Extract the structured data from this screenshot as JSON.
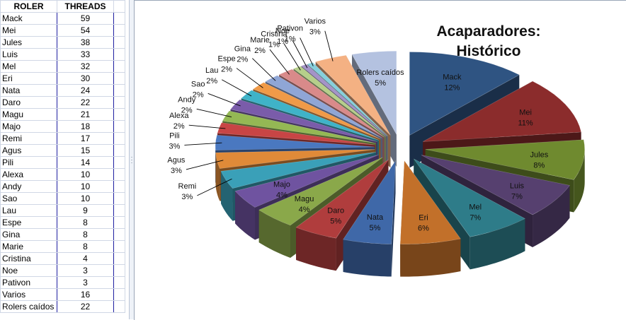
{
  "sheet": {
    "headers": [
      "ROLER",
      "THREADS"
    ],
    "rows": [
      [
        "Mack",
        "59"
      ],
      [
        "Mei",
        "54"
      ],
      [
        "Jules",
        "38"
      ],
      [
        "Luis",
        "33"
      ],
      [
        "Mel",
        "32"
      ],
      [
        "Eri",
        "30"
      ],
      [
        "Nata",
        "24"
      ],
      [
        "Daro",
        "22"
      ],
      [
        "Magu",
        "21"
      ],
      [
        "Majo",
        "18"
      ],
      [
        "Remi",
        "17"
      ],
      [
        "Agus",
        "15"
      ],
      [
        "Pili",
        "14"
      ],
      [
        "Alexa",
        "10"
      ],
      [
        "Andy",
        "10"
      ],
      [
        "Sao",
        "10"
      ],
      [
        "Lau",
        "9"
      ],
      [
        "Espe",
        "8"
      ],
      [
        "Gina",
        "8"
      ],
      [
        "Marie",
        "8"
      ],
      [
        "Cristina",
        "4"
      ],
      [
        "Noe",
        "3"
      ],
      [
        "Pativon",
        "3"
      ],
      [
        "Varios",
        "16"
      ],
      [
        "Rolers caídos",
        "22"
      ]
    ]
  },
  "chart_data": {
    "type": "pie",
    "title_lines": [
      "Acaparadores:",
      "Histórico"
    ],
    "slices": [
      {
        "label": "Mack",
        "value": 59,
        "pct_label": "12%",
        "color": "#2f5482"
      },
      {
        "label": "Mei",
        "value": 54,
        "pct_label": "11%",
        "color": "#8b2c2c"
      },
      {
        "label": "Jules",
        "value": 38,
        "pct_label": "8%",
        "color": "#6f8a2f"
      },
      {
        "label": "Luis",
        "value": 33,
        "pct_label": "7%",
        "color": "#56406f"
      },
      {
        "label": "Mel",
        "value": 32,
        "pct_label": "7%",
        "color": "#2e7c89"
      },
      {
        "label": "Eri",
        "value": 30,
        "pct_label": "6%",
        "color": "#c2702a"
      },
      {
        "label": "Nata",
        "value": 24,
        "pct_label": "5%",
        "color": "#3f68a8"
      },
      {
        "label": "Daro",
        "value": 22,
        "pct_label": "5%",
        "color": "#b03d3d"
      },
      {
        "label": "Magu",
        "value": 21,
        "pct_label": "4%",
        "color": "#8aa84a"
      },
      {
        "label": "Majo",
        "value": 18,
        "pct_label": "4%",
        "color": "#6f53a0"
      },
      {
        "label": "Remi",
        "value": 17,
        "pct_label": "3%",
        "color": "#3aa0b8"
      },
      {
        "label": "Agus",
        "value": 15,
        "pct_label": "3%",
        "color": "#e08a38"
      },
      {
        "label": "Pili",
        "value": 14,
        "pct_label": "3%",
        "color": "#4a78c0"
      },
      {
        "label": "Alexa",
        "value": 10,
        "pct_label": "2%",
        "color": "#c84545"
      },
      {
        "label": "Andy",
        "value": 10,
        "pct_label": "2%",
        "color": "#94b854"
      },
      {
        "label": "Sao",
        "value": 10,
        "pct_label": "2%",
        "color": "#7a5caa"
      },
      {
        "label": "Lau",
        "value": 9,
        "pct_label": "2%",
        "color": "#3fb3c8"
      },
      {
        "label": "Espe",
        "value": 8,
        "pct_label": "2%",
        "color": "#f09a48"
      },
      {
        "label": "Gina",
        "value": 8,
        "pct_label": "2%",
        "color": "#8fa6d6"
      },
      {
        "label": "Marie",
        "value": 8,
        "pct_label": "2%",
        "color": "#d98a8a"
      },
      {
        "label": "Cristina",
        "value": 4,
        "pct_label": "1%",
        "color": "#b6cf8a"
      },
      {
        "label": "Noe",
        "value": 3,
        "pct_label": "1%",
        "color": "#a493c8"
      },
      {
        "label": "Pativon",
        "value": 3,
        "pct_label": "1%",
        "color": "#86cfdc"
      },
      {
        "label": "Varios",
        "value": 16,
        "pct_label": "3%",
        "color": "#f4b183"
      },
      {
        "label": "Rolers caídos",
        "value": 22,
        "pct_label": "5%",
        "color": "#b4c2e0"
      }
    ]
  }
}
